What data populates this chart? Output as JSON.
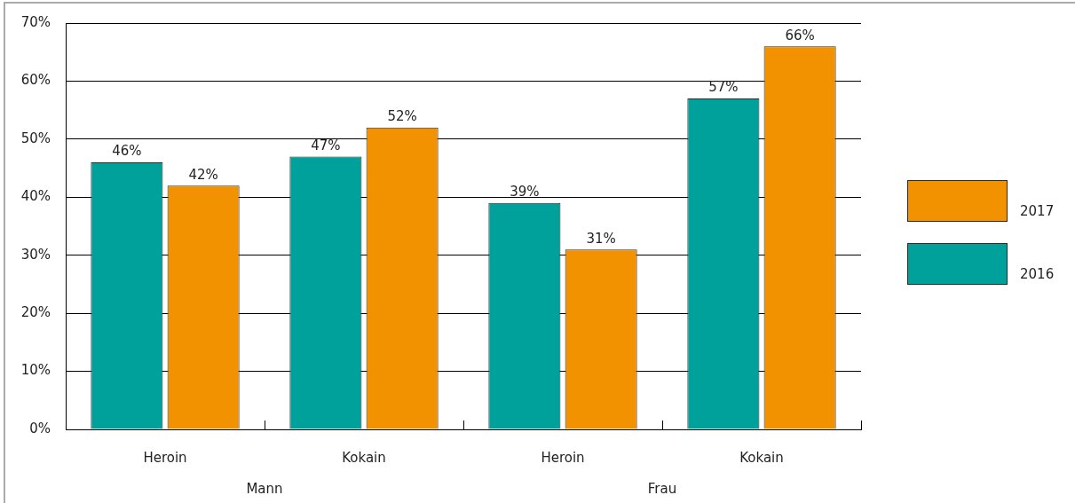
{
  "chart_data": {
    "type": "bar",
    "categories": [
      "Heroin",
      "Kokain",
      "Heroin",
      "Kokain"
    ],
    "series": [
      {
        "name": "2016",
        "color": "#00a19a",
        "values": [
          46,
          47,
          39,
          57
        ],
        "value_labels": [
          "46%",
          "47%",
          "39%",
          "57%"
        ]
      },
      {
        "name": "2017",
        "color": "#f39200",
        "values": [
          42,
          52,
          31,
          66
        ],
        "value_labels": [
          "42%",
          "52%",
          "31%",
          "66%"
        ]
      }
    ],
    "ylim": [
      0,
      70
    ],
    "yticks": [
      {
        "value": 0,
        "label": "0%"
      },
      {
        "value": 10,
        "label": "10%"
      },
      {
        "value": 20,
        "label": "20%"
      },
      {
        "value": 30,
        "label": "30%"
      },
      {
        "value": 40,
        "label": "40%"
      },
      {
        "value": 50,
        "label": "50%"
      },
      {
        "value": 60,
        "label": "60%"
      },
      {
        "value": 70,
        "label": "70%"
      }
    ],
    "grid": "y",
    "legend": "right",
    "annotations": [
      "Mann",
      "Frau"
    ]
  }
}
